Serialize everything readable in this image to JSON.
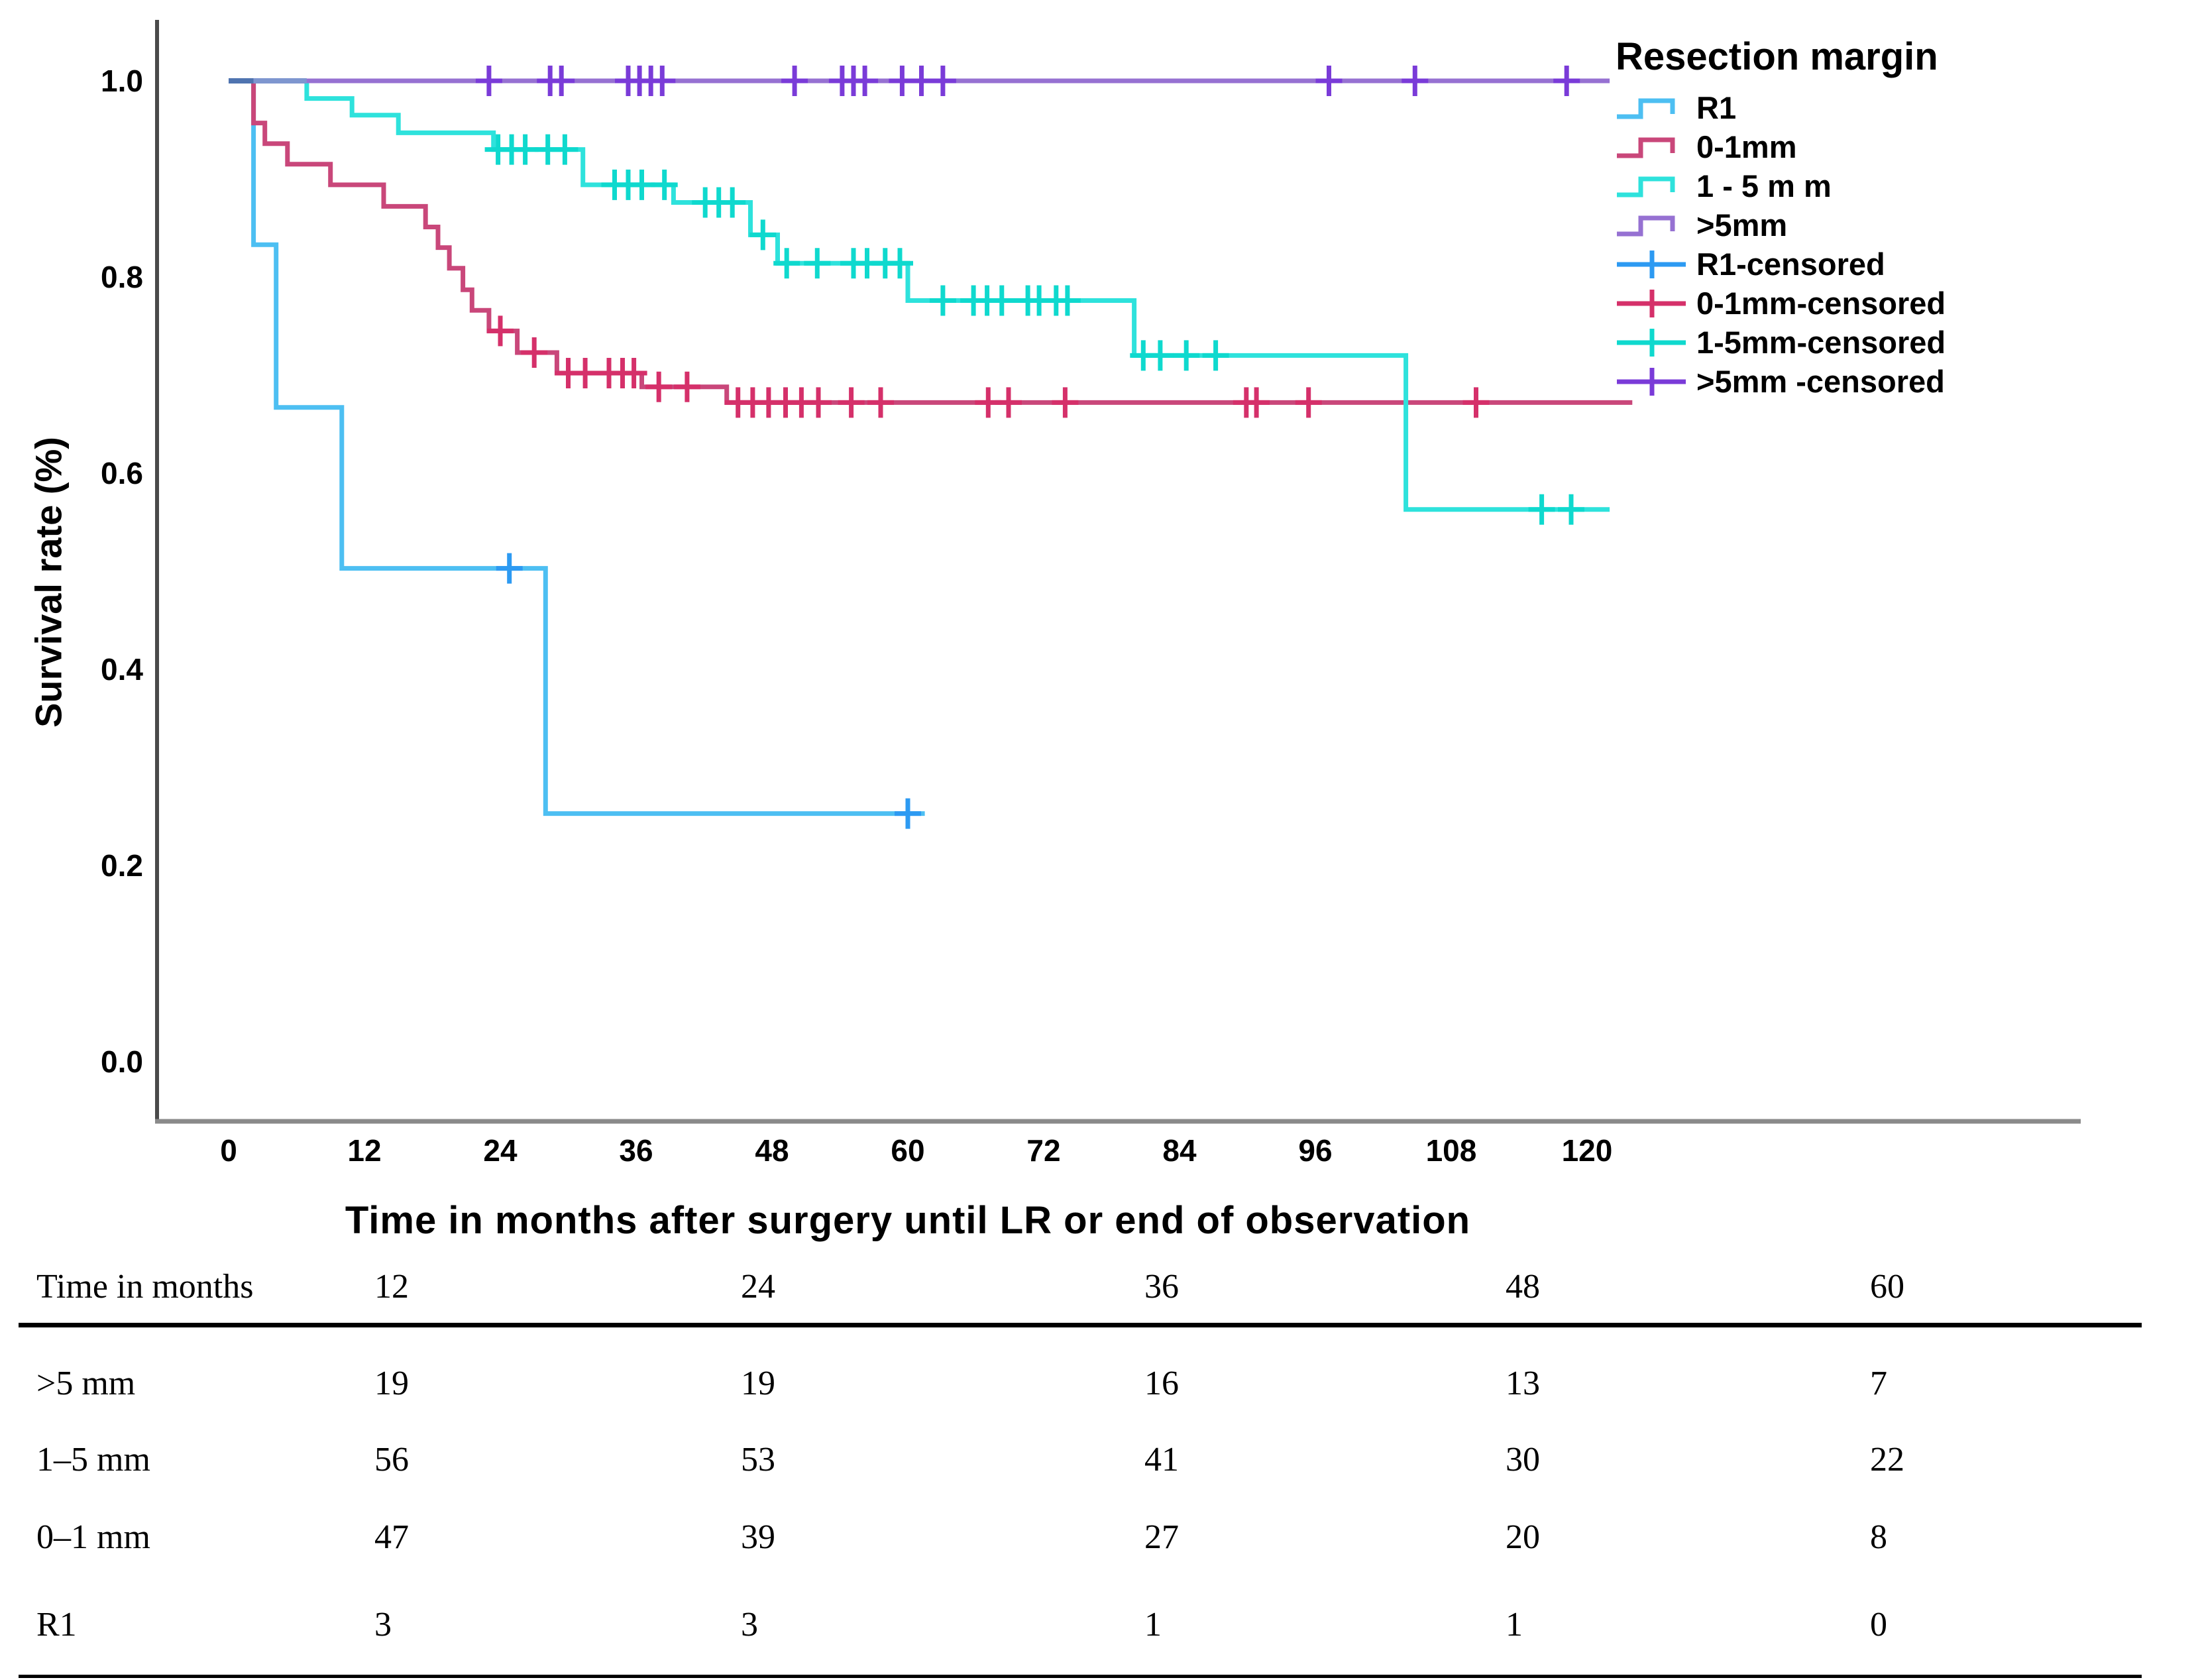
{
  "chart_data": {
    "type": "line",
    "subtype": "kaplan-meier-step",
    "title": "",
    "ylabel": "Survival rate (%)",
    "xlabel": "Time in months after surgery until LR or end of observation",
    "legend_title": "Resection margin",
    "legend_position": "right-top",
    "grid": false,
    "xlim": [
      0,
      126
    ],
    "ylim": [
      0.0,
      1.05
    ],
    "x_ticks": [
      0,
      12,
      24,
      36,
      48,
      60,
      72,
      84,
      96,
      108,
      120
    ],
    "y_ticks": [
      {
        "label": "1.0",
        "value": 1.0
      },
      {
        "label": "0.8",
        "value": 0.8
      },
      {
        "label": "0.6",
        "value": 0.6
      },
      {
        "label": "0.4",
        "value": 0.4
      },
      {
        "label": "0.2",
        "value": 0.2
      },
      {
        "label": "0.0",
        "value": 0.0
      }
    ],
    "series": [
      {
        "name": "R1",
        "color": "#4DBFF2",
        "censor_color": "#2D9AF2",
        "end": 61.5,
        "steps": [
          [
            0,
            1.0
          ],
          [
            2.2,
            0.833
          ],
          [
            4.2,
            0.667
          ],
          [
            10,
            0.503
          ],
          [
            28,
            0.253
          ]
        ],
        "censors": [
          [
            24.8,
            0.503
          ],
          [
            60,
            0.253
          ]
        ]
      },
      {
        "name": "0-1mm",
        "color": "#C9477A",
        "censor_color": "#D5306A",
        "end": 124,
        "steps": [
          [
            0,
            1.0
          ],
          [
            2.2,
            0.957
          ],
          [
            3.2,
            0.936
          ],
          [
            5.2,
            0.915
          ],
          [
            9,
            0.894
          ],
          [
            13.7,
            0.872
          ],
          [
            17.4,
            0.851
          ],
          [
            18.5,
            0.83
          ],
          [
            19.5,
            0.809
          ],
          [
            20.7,
            0.787
          ],
          [
            21.5,
            0.766
          ],
          [
            23,
            0.745
          ],
          [
            25.5,
            0.723
          ],
          [
            29,
            0.702
          ],
          [
            36.5,
            0.688
          ],
          [
            44,
            0.672
          ]
        ],
        "censors": [
          [
            24,
            0.745
          ],
          [
            27,
            0.723
          ],
          [
            30,
            0.702
          ],
          [
            31.5,
            0.702
          ],
          [
            33.6,
            0.702
          ],
          [
            34.8,
            0.702
          ],
          [
            35.8,
            0.702
          ],
          [
            38,
            0.688
          ],
          [
            40.5,
            0.688
          ],
          [
            45,
            0.672
          ],
          [
            46.3,
            0.672
          ],
          [
            47.7,
            0.672
          ],
          [
            49.2,
            0.672
          ],
          [
            50.6,
            0.672
          ],
          [
            52.1,
            0.672
          ],
          [
            55,
            0.672
          ],
          [
            57.6,
            0.672
          ],
          [
            67.1,
            0.672
          ],
          [
            68.9,
            0.672
          ],
          [
            73.9,
            0.672
          ],
          [
            89.9,
            0.672
          ],
          [
            90.8,
            0.672
          ],
          [
            95.4,
            0.672
          ],
          [
            110.2,
            0.672
          ]
        ]
      },
      {
        "name": "1-5mm",
        "color": "#2EE2DC",
        "censor_color": "#0FD9CE",
        "end": 122,
        "steps": [
          [
            0,
            1.0
          ],
          [
            6.9,
            0.982
          ],
          [
            10.9,
            0.965
          ],
          [
            15,
            0.947
          ],
          [
            23.4,
            0.93
          ],
          [
            31.3,
            0.894
          ],
          [
            39.3,
            0.876
          ],
          [
            46.1,
            0.843
          ],
          [
            48.5,
            0.814
          ],
          [
            60,
            0.776
          ],
          [
            80,
            0.72
          ],
          [
            104,
            0.563
          ]
        ],
        "censors": [
          [
            23.8,
            0.93
          ],
          [
            25,
            0.93
          ],
          [
            26.2,
            0.93
          ],
          [
            28.2,
            0.93
          ],
          [
            29.7,
            0.93
          ],
          [
            34.1,
            0.894
          ],
          [
            35.3,
            0.894
          ],
          [
            36.5,
            0.894
          ],
          [
            38.5,
            0.894
          ],
          [
            42.1,
            0.876
          ],
          [
            43.3,
            0.876
          ],
          [
            44.5,
            0.876
          ],
          [
            47.2,
            0.843
          ],
          [
            49.3,
            0.814
          ],
          [
            52,
            0.814
          ],
          [
            55.2,
            0.814
          ],
          [
            56.4,
            0.814
          ],
          [
            58,
            0.814
          ],
          [
            59.3,
            0.814
          ],
          [
            63.1,
            0.776
          ],
          [
            65.8,
            0.776
          ],
          [
            67,
            0.776
          ],
          [
            68.3,
            0.776
          ],
          [
            70.6,
            0.776
          ],
          [
            71.6,
            0.776
          ],
          [
            73.1,
            0.776
          ],
          [
            74.1,
            0.776
          ],
          [
            80.8,
            0.72
          ],
          [
            82.3,
            0.72
          ],
          [
            84.6,
            0.72
          ],
          [
            87.2,
            0.72
          ],
          [
            116,
            0.563
          ],
          [
            118.6,
            0.563
          ]
        ]
      },
      {
        "name": ">5mm",
        "color": "#9671D2",
        "censor_color": "#7A3BD8",
        "end": 122,
        "steps": [
          [
            0,
            1.0
          ]
        ],
        "censors": [
          [
            23,
            1.0
          ],
          [
            28.4,
            1.0
          ],
          [
            29.4,
            1.0
          ],
          [
            35.3,
            1.0
          ],
          [
            36.3,
            1.0
          ],
          [
            37.3,
            1.0
          ],
          [
            38.3,
            1.0
          ],
          [
            50,
            1.0
          ],
          [
            54.2,
            1.0
          ],
          [
            55.2,
            1.0
          ],
          [
            56.2,
            1.0
          ],
          [
            59.5,
            1.0
          ],
          [
            61.2,
            1.0
          ],
          [
            63.1,
            1.0
          ],
          [
            97.2,
            1.0
          ],
          [
            104.8,
            1.0
          ],
          [
            118.2,
            1.0
          ]
        ]
      }
    ],
    "overlap_segments": [
      {
        "from": 0,
        "to": 2.2,
        "level": 1.0,
        "color": "#4F74B0"
      },
      {
        "from": 2.2,
        "to": 6.9,
        "level": 1.0,
        "color": "#7E96CF"
      }
    ],
    "legend_items": [
      {
        "label": "R1",
        "type": "step",
        "color": "#4DBFF2"
      },
      {
        "label": "0-1mm",
        "type": "step",
        "color": "#C9477A"
      },
      {
        "label": "1 - 5 m m",
        "type": "step",
        "color": "#2EE2DC"
      },
      {
        "label": ">5mm",
        "type": "step",
        "color": "#9671D2"
      },
      {
        "label": "R1-censored",
        "type": "censored",
        "color": "#2D9AF2"
      },
      {
        "label": "0-1mm-censored",
        "type": "censored",
        "color": "#D5306A"
      },
      {
        "label": "1-5mm-censored",
        "type": "censored",
        "color": "#0FD9CE"
      },
      {
        "label": ">5mm -censored",
        "type": "censored",
        "color": "#7A3BD8"
      }
    ],
    "axis_color": "#4a4a4a",
    "text_color": "#000000"
  },
  "risk_table": {
    "header_label": "Time in months",
    "time_points": [
      "12",
      "24",
      "36",
      "48",
      "60"
    ],
    "rows": [
      {
        "label": ">5 mm",
        "values": [
          "19",
          "19",
          "16",
          "13",
          "7"
        ]
      },
      {
        "label": "1–5 mm",
        "values": [
          "56",
          "53",
          "41",
          "30",
          "22"
        ]
      },
      {
        "label": "0–1 mm",
        "values": [
          "47",
          "39",
          "27",
          "20",
          "8"
        ]
      },
      {
        "label": "R1",
        "values": [
          "3",
          "3",
          "1",
          "1",
          "0"
        ]
      }
    ]
  }
}
